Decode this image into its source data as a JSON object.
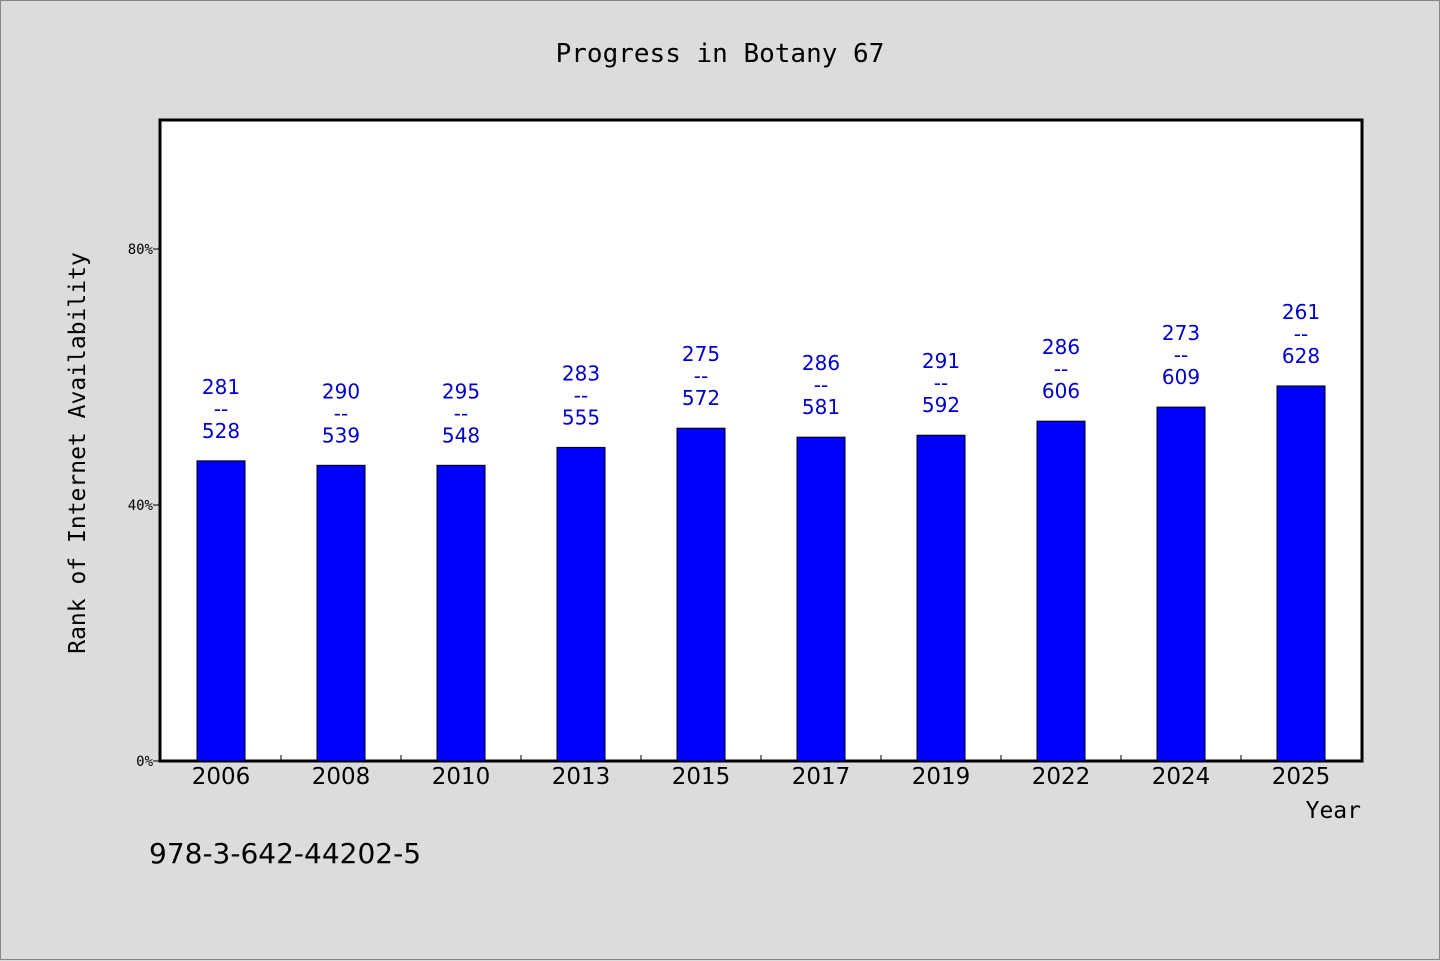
{
  "chart_data": {
    "type": "bar",
    "title": "Progress in Botany 67",
    "xlabel": "Year",
    "ylabel": "Rank of Internet Availability",
    "ylim": [
      0,
      100
    ],
    "yticks": [
      0,
      40,
      80
    ],
    "ytick_labels": [
      "0%",
      "40%",
      "80%"
    ],
    "grid": false,
    "categories": [
      "2006",
      "2008",
      "2010",
      "2013",
      "2015",
      "2017",
      "2019",
      "2022",
      "2024",
      "2025"
    ],
    "values": [
      46.9,
      46.2,
      46.2,
      49.0,
      52.0,
      50.6,
      50.9,
      53.1,
      55.3,
      58.6
    ],
    "labels_top": [
      "281",
      "290",
      "295",
      "283",
      "275",
      "286",
      "291",
      "286",
      "273",
      "261"
    ],
    "labels_mid": [
      "--",
      "--",
      "--",
      "--",
      "--",
      "--",
      "--",
      "--",
      "--",
      "--"
    ],
    "labels_bottom": [
      "528",
      "539",
      "548",
      "555",
      "572",
      "581",
      "592",
      "606",
      "609",
      "628"
    ],
    "bar_color": "#0000ff",
    "label_color": "#0000cc"
  },
  "footer": {
    "isbn": "978-3-642-44202-5"
  }
}
